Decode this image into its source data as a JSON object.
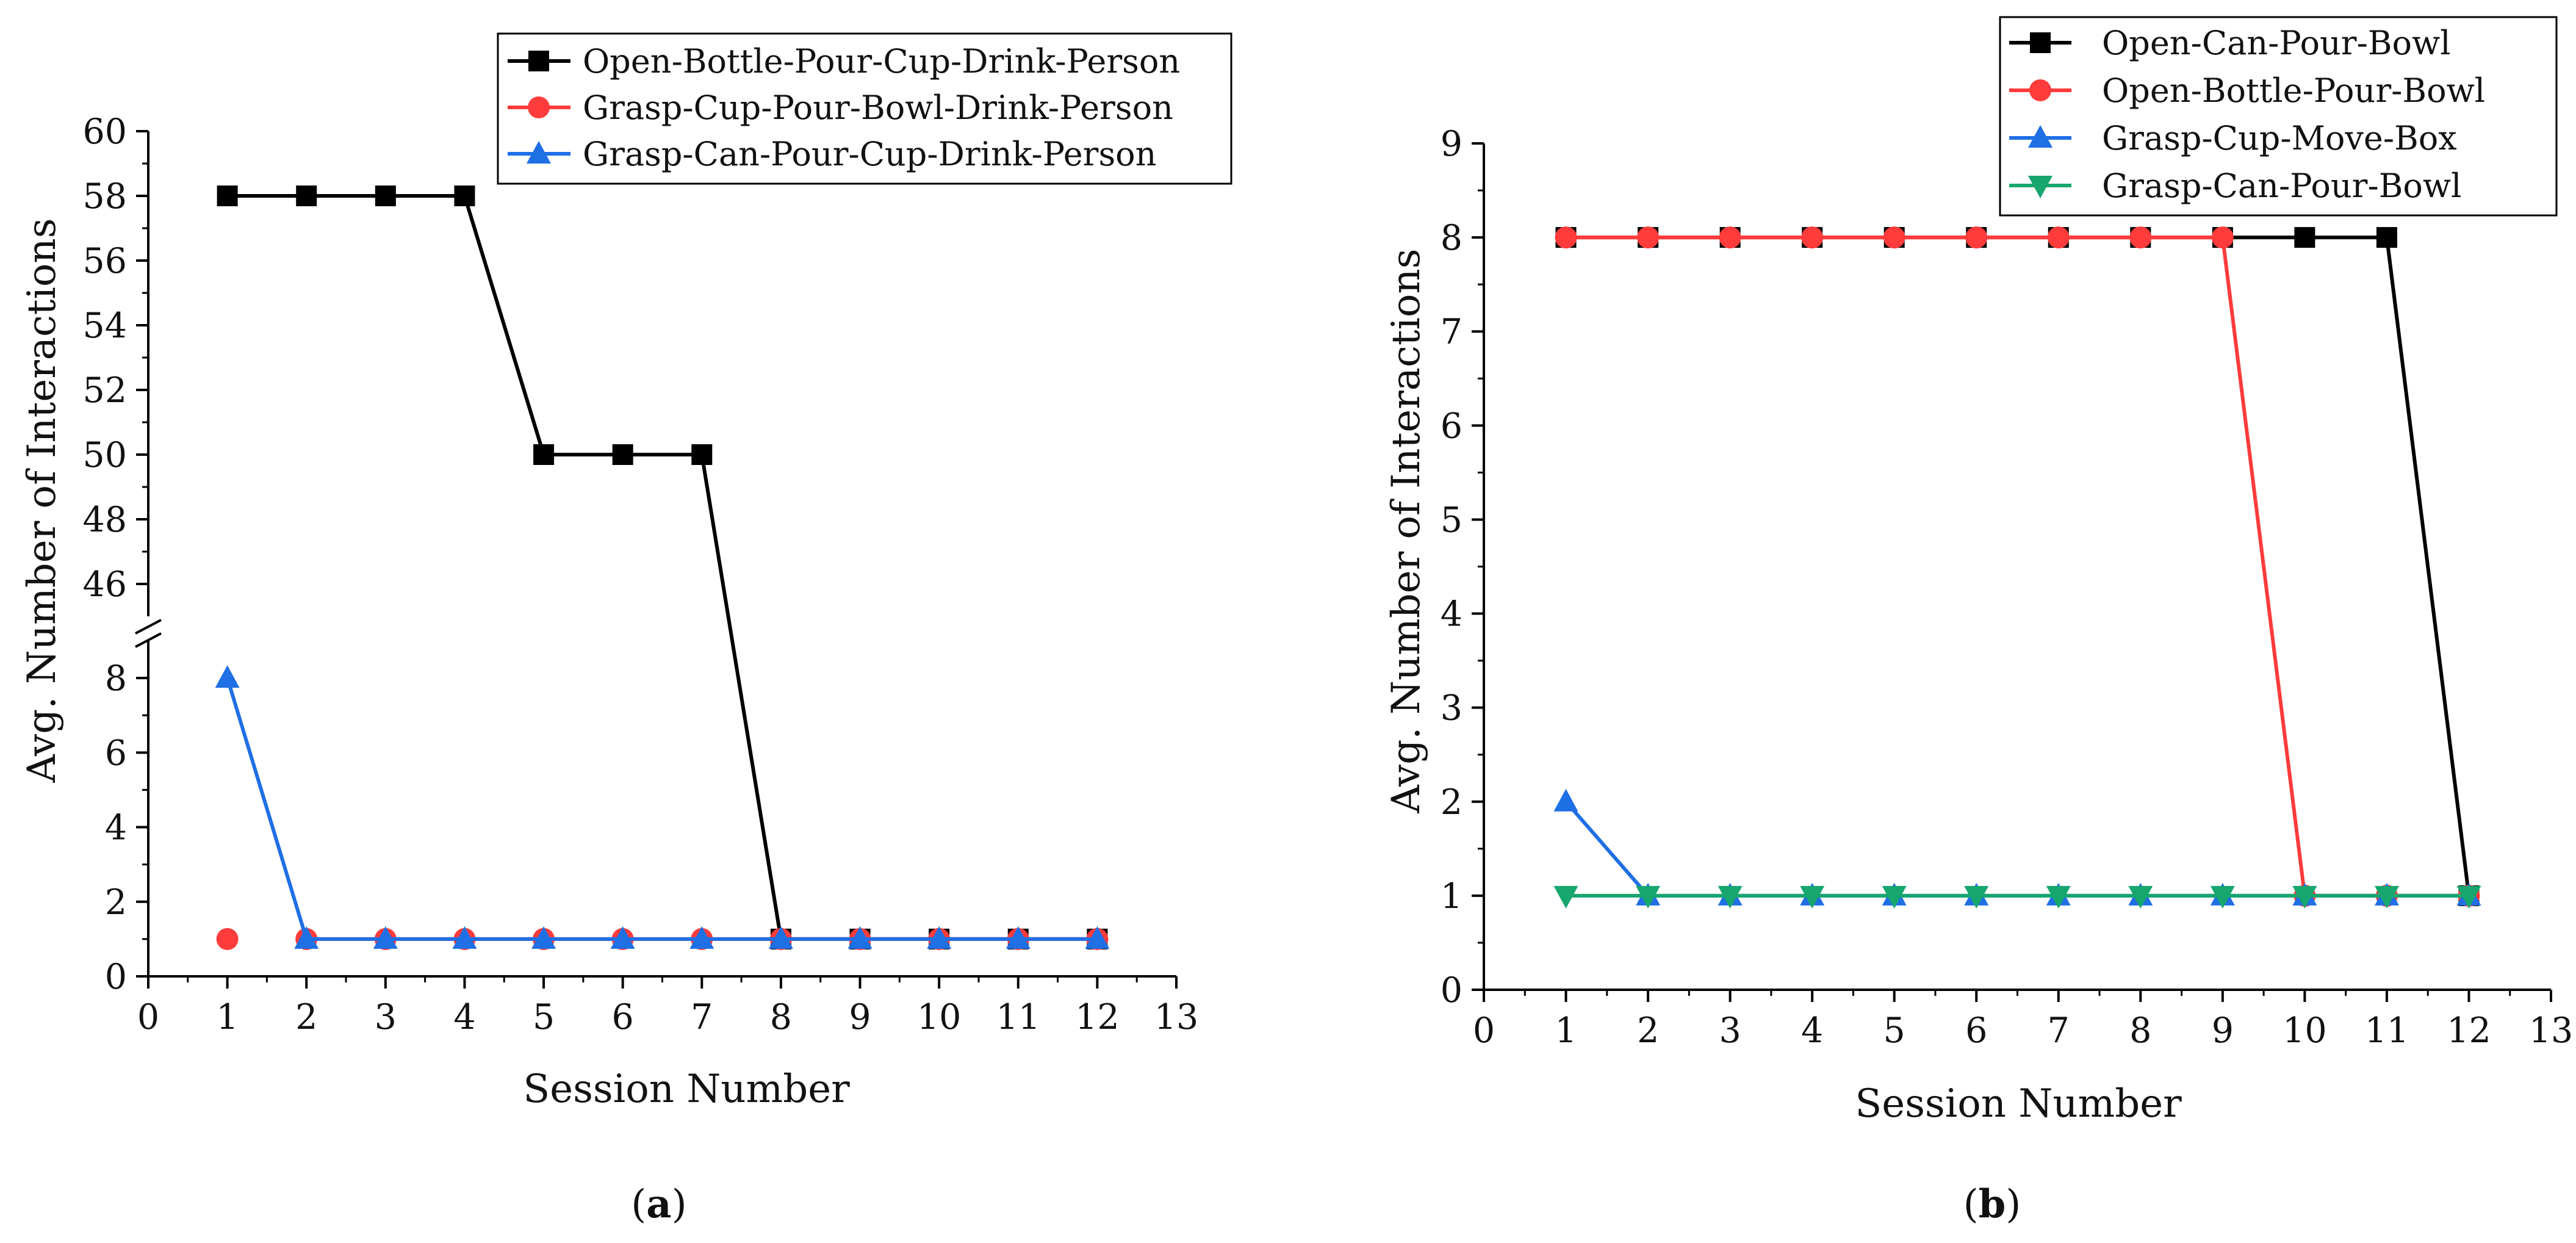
{
  "colors": {
    "black": "#000000",
    "red": "#ff3b3b",
    "blue": "#1f6fe5",
    "green": "#16a66e"
  },
  "chart_data": [
    {
      "type": "line",
      "caption_open": "(",
      "caption_letter": "a",
      "caption_close": ")",
      "xlabel": "Session Number",
      "ylabel": "Avg. Number of Interactions",
      "xlim": [
        0,
        13
      ],
      "x_ticks": [
        "0",
        "1",
        "2",
        "3",
        "4",
        "5",
        "6",
        "7",
        "8",
        "9",
        "10",
        "11",
        "12",
        "13"
      ],
      "y_lower_range": [
        0,
        9
      ],
      "y_lower_ticks": [
        "0",
        "2",
        "4",
        "6",
        "8"
      ],
      "y_upper_range": [
        45,
        60
      ],
      "y_upper_ticks": [
        "46",
        "48",
        "50",
        "52",
        "54",
        "56",
        "58",
        "60"
      ],
      "axis_break": true,
      "legend_position": "top-right",
      "x": [
        1,
        2,
        3,
        4,
        5,
        6,
        7,
        8,
        9,
        10,
        11,
        12
      ],
      "series": [
        {
          "name": "Open-Bottle-Pour-Cup-Drink-Person",
          "color": "black",
          "marker": "square",
          "values": [
            58,
            58,
            58,
            58,
            50,
            50,
            50,
            1,
            1,
            1,
            1,
            1
          ]
        },
        {
          "name": "Grasp-Cup-Pour-Bowl-Drink-Person",
          "color": "red",
          "marker": "circle",
          "values": [
            1,
            1,
            1,
            1,
            1,
            1,
            1,
            1,
            1,
            1,
            1,
            1
          ]
        },
        {
          "name": "Grasp-Can-Pour-Cup-Drink-Person",
          "color": "blue",
          "marker": "triangle-up",
          "values": [
            8,
            1,
            1,
            1,
            1,
            1,
            1,
            1,
            1,
            1,
            1,
            1
          ]
        }
      ]
    },
    {
      "type": "line",
      "caption_open": "(",
      "caption_letter": "b",
      "caption_close": ")",
      "xlabel": "Session Number",
      "ylabel": "Avg. Number of Interactions",
      "xlim": [
        0,
        13
      ],
      "ylim": [
        0,
        9
      ],
      "x_ticks": [
        "0",
        "1",
        "2",
        "3",
        "4",
        "5",
        "6",
        "7",
        "8",
        "9",
        "10",
        "11",
        "12",
        "13"
      ],
      "y_ticks": [
        "0",
        "1",
        "2",
        "3",
        "4",
        "5",
        "6",
        "7",
        "8",
        "9"
      ],
      "legend_position": "top-right",
      "x": [
        1,
        2,
        3,
        4,
        5,
        6,
        7,
        8,
        9,
        10,
        11,
        12
      ],
      "series": [
        {
          "name": "Open-Can-Pour-Bowl",
          "color": "black",
          "marker": "square",
          "values": [
            8,
            8,
            8,
            8,
            8,
            8,
            8,
            8,
            8,
            8,
            8,
            1
          ]
        },
        {
          "name": "Open-Bottle-Pour-Bowl",
          "color": "red",
          "marker": "circle",
          "values": [
            8,
            8,
            8,
            8,
            8,
            8,
            8,
            8,
            8,
            1,
            1,
            1
          ]
        },
        {
          "name": "Grasp-Cup-Move-Box",
          "color": "blue",
          "marker": "triangle-up",
          "values": [
            2,
            1,
            1,
            1,
            1,
            1,
            1,
            1,
            1,
            1,
            1,
            1
          ]
        },
        {
          "name": "Grasp-Can-Pour-Bowl",
          "color": "green",
          "marker": "triangle-down",
          "values": [
            1,
            1,
            1,
            1,
            1,
            1,
            1,
            1,
            1,
            1,
            1,
            1
          ]
        }
      ]
    }
  ]
}
